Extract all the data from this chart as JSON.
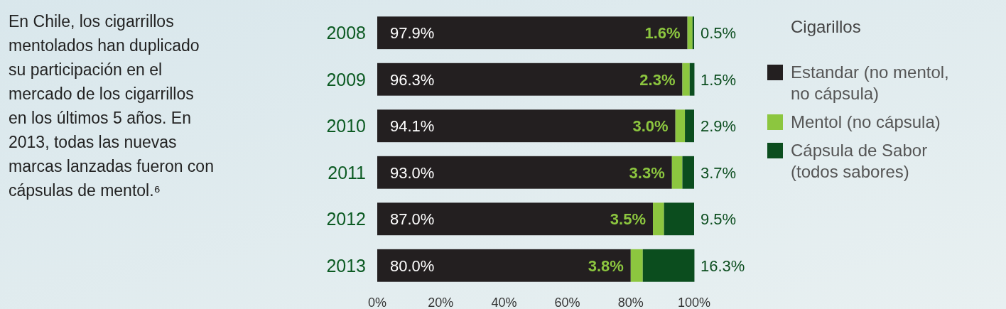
{
  "chart_data": {
    "type": "bar",
    "orientation": "horizontal",
    "stacked": true,
    "legend": "right",
    "legend_title": "Cigarillos",
    "annotations": [
      "En Chile, los cigarrillos mentolados han duplicado su participación en el mercado de los cigarrillos en los últimos 5 años. En 2013, todas las nuevas marcas lanzadas fueron con cápsulas de mentol.⁶"
    ],
    "categories": [
      "2008",
      "2009",
      "2010",
      "2011",
      "2012",
      "2013"
    ],
    "series": [
      {
        "name": "Estandar (no mentol, no cápsula)",
        "color": "#231f20",
        "values": [
          97.9,
          96.3,
          94.1,
          93.0,
          87.0,
          80.0
        ],
        "value_labels": [
          "97.9%",
          "96.3%",
          "94.1%",
          "93.0%",
          "87.0%",
          "80.0%"
        ]
      },
      {
        "name": "Mentol (no cápsula)",
        "color": "#8cc63f",
        "values": [
          1.6,
          2.3,
          3.0,
          3.3,
          3.5,
          3.8
        ],
        "value_labels": [
          "1.6%",
          "2.3%",
          "3.0%",
          "3.3%",
          "3.5%",
          "3.8%"
        ]
      },
      {
        "name": "Cápsula de Sabor (todos sabores)",
        "color": "#0b4d1e",
        "values": [
          0.5,
          1.5,
          2.9,
          3.7,
          9.5,
          16.3
        ],
        "value_labels": [
          "0.5%",
          "1.5%",
          "2.9%",
          "3.7%",
          "9.5%",
          "16.3%"
        ]
      }
    ],
    "xlim": [
      0,
      100
    ],
    "xticks": [
      {
        "value": 0,
        "label": "0%"
      },
      {
        "value": 20,
        "label": "20%"
      },
      {
        "value": 40,
        "label": "40%"
      },
      {
        "value": 60,
        "label": "60%"
      },
      {
        "value": 80,
        "label": "80%"
      },
      {
        "value": 100,
        "label": "100%"
      }
    ]
  }
}
